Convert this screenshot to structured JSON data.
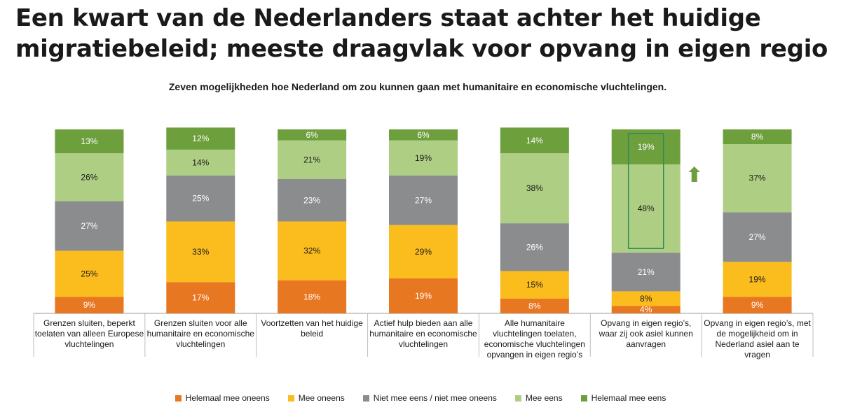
{
  "headline": "Een kwart van de Nederlanders staat achter het huidige migratiebeleid; meeste draagvlak voor opvang in eigen regio",
  "chart_data": {
    "type": "bar",
    "stacked": true,
    "percent_stacked": true,
    "title": "Zeven mogelijkheden hoe Nederland om zou kunnen gaan met humanitaire en economische vluchtelingen.",
    "categories": [
      "Grenzen sluiten, beperkt toelaten van alleen Europese vluchtelingen",
      "Grenzen sluiten voor alle humanitaire en economische vluchtelingen",
      "Voortzetten van het huidige beleid",
      "Actief hulp bieden aan alle humanitaire en economische vluchtelingen",
      "Alle humanitaire vluchtelingen toelaten, economische vluchtelingen opvangen in eigen regio’s",
      "Opvang in eigen regio’s, waar zij ook asiel kunnen aanvragen",
      "Opvang in eigen regio’s, met de mogelijkheid om in Nederland asiel aan te vragen"
    ],
    "series": [
      {
        "name": "Helemaal mee oneens",
        "color": "#E87722",
        "values": [
          9,
          17,
          18,
          19,
          8,
          4,
          9
        ]
      },
      {
        "name": "Mee oneens",
        "color": "#FBBC1E",
        "values": [
          25,
          33,
          32,
          29,
          15,
          8,
          19
        ]
      },
      {
        "name": "Niet mee eens / niet mee oneens",
        "color": "#8A8C8E",
        "values": [
          27,
          25,
          23,
          27,
          26,
          21,
          27
        ]
      },
      {
        "name": "Mee eens",
        "color": "#AECF83",
        "values": [
          26,
          14,
          21,
          19,
          38,
          48,
          37
        ]
      },
      {
        "name": "Helemaal mee eens",
        "color": "#6E9F3D",
        "values": [
          13,
          12,
          6,
          6,
          14,
          19,
          8
        ]
      }
    ],
    "label_suffix": "%",
    "ylim": [
      0,
      100
    ],
    "legend_position": "bottom",
    "highlight": {
      "category_index": 5,
      "series": [
        "Mee eens",
        "Helemaal mee eens"
      ],
      "box_color": "#2E8B57",
      "arrow": "up",
      "arrow_color": "#6E9F3D"
    }
  }
}
